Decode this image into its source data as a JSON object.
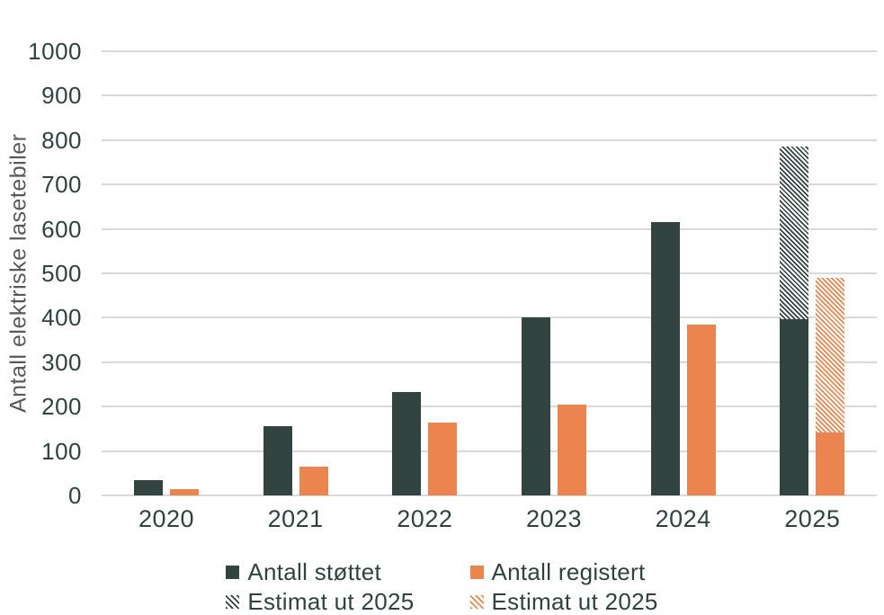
{
  "chart_data": {
    "type": "bar",
    "title": "",
    "ylabel": "Antall elektriske lasetebiler",
    "xlabel": "",
    "ylim": [
      0,
      1000
    ],
    "yticks": [
      0,
      100,
      200,
      300,
      400,
      500,
      600,
      700,
      800,
      900,
      1000
    ],
    "grid": true,
    "legend_position": "bottom",
    "categories": [
      "2020",
      "2021",
      "2022",
      "2023",
      "2024",
      "2025"
    ],
    "series": [
      {
        "name": "Antall støttet",
        "style": "solid",
        "color_key": "dark",
        "values": [
          35,
          155,
          233,
          400,
          616,
          396
        ]
      },
      {
        "name": "Antall registert",
        "style": "solid",
        "color_key": "orange",
        "values": [
          15,
          65,
          163,
          205,
          384,
          142
        ]
      },
      {
        "name": "Estimat ut 2025",
        "style": "hatch",
        "color_key": "dark",
        "stacked_on": 0,
        "totals": [
          null,
          null,
          null,
          null,
          null,
          786
        ]
      },
      {
        "name": "Estimat ut 2025",
        "style": "hatch",
        "color_key": "orange",
        "stacked_on": 1,
        "totals": [
          null,
          null,
          null,
          null,
          null,
          490
        ]
      }
    ]
  },
  "colors": {
    "dark": "#31443F",
    "orange": "#EC8450",
    "grid": "#D9D9D9",
    "axis_title": "#595959",
    "text": "#2E433E",
    "background": "#FFFFFF"
  },
  "legend": {
    "items": [
      {
        "label": "Antall støttet",
        "color_key": "dark",
        "style": "solid"
      },
      {
        "label": "Antall registert",
        "color_key": "orange",
        "style": "solid"
      },
      {
        "label": "Estimat ut 2025",
        "color_key": "dark",
        "style": "hatch"
      },
      {
        "label": "Estimat ut 2025",
        "color_key": "orange",
        "style": "hatch"
      }
    ]
  }
}
